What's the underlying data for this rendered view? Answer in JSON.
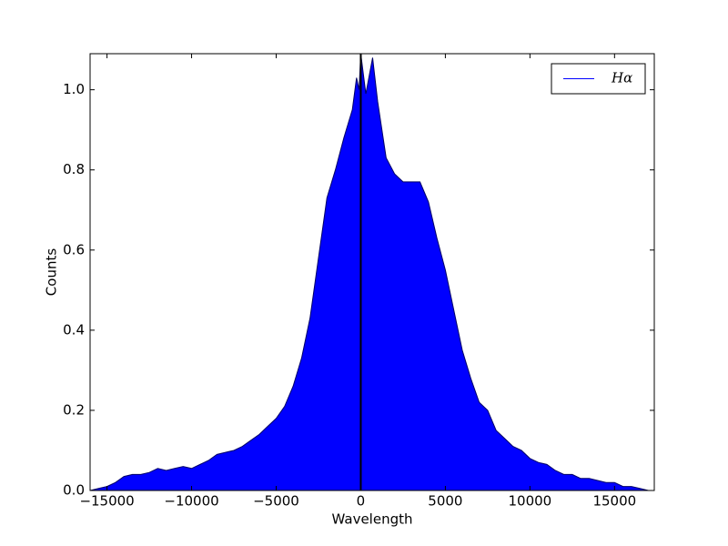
{
  "chart_data": {
    "type": "area",
    "x_label": "Wavelength",
    "y_label": "Counts",
    "x": [
      -16000,
      -15500,
      -15000,
      -14500,
      -14000,
      -13500,
      -13000,
      -12500,
      -12000,
      -11500,
      -11000,
      -10500,
      -10000,
      -9500,
      -9000,
      -8500,
      -8000,
      -7500,
      -7000,
      -6500,
      -6000,
      -5500,
      -5000,
      -4500,
      -4000,
      -3500,
      -3000,
      -2500,
      -2000,
      -1500,
      -1000,
      -500,
      -250,
      -100,
      0,
      300,
      700,
      1000,
      1500,
      2000,
      2500,
      3000,
      3500,
      4000,
      4500,
      5000,
      5500,
      6000,
      6500,
      7000,
      7500,
      8000,
      8500,
      9000,
      9500,
      10000,
      10500,
      11000,
      11500,
      12000,
      12500,
      13000,
      13500,
      14000,
      14500,
      15000,
      15500,
      16000,
      16500,
      17000
    ],
    "series": [
      {
        "name": "Hα",
        "color": "#0000ff",
        "values": [
          0.0,
          0.005,
          0.01,
          0.02,
          0.035,
          0.04,
          0.04,
          0.045,
          0.055,
          0.05,
          0.055,
          0.06,
          0.055,
          0.065,
          0.075,
          0.09,
          0.095,
          0.1,
          0.11,
          0.125,
          0.14,
          0.16,
          0.18,
          0.21,
          0.26,
          0.33,
          0.43,
          0.58,
          0.73,
          0.8,
          0.88,
          0.95,
          1.03,
          1.0,
          1.09,
          0.99,
          1.08,
          0.97,
          0.83,
          0.79,
          0.77,
          0.77,
          0.77,
          0.72,
          0.63,
          0.55,
          0.45,
          0.35,
          0.28,
          0.22,
          0.2,
          0.15,
          0.13,
          0.11,
          0.1,
          0.08,
          0.07,
          0.065,
          0.05,
          0.04,
          0.04,
          0.03,
          0.03,
          0.025,
          0.02,
          0.02,
          0.01,
          0.01,
          0.005,
          0.0
        ]
      }
    ],
    "vline": 0,
    "vline_color": "#000000",
    "xlim": [
      -16000,
      17350
    ],
    "ylim": [
      0,
      1.09
    ],
    "xticks": [
      {
        "value": -15000,
        "label": "−15000"
      },
      {
        "value": -10000,
        "label": "−10000"
      },
      {
        "value": -5000,
        "label": "−5000"
      },
      0,
      5000,
      10000,
      15000
    ],
    "yticks": [
      {
        "value": 0,
        "label": "0.0"
      },
      0.2,
      0.4,
      0.6,
      0.8,
      {
        "value": 1,
        "label": "1.0"
      }
    ],
    "legend": "upper right"
  }
}
